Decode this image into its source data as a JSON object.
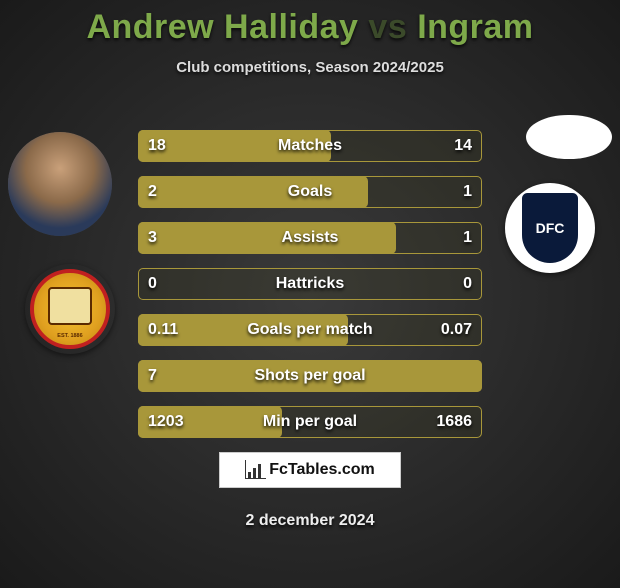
{
  "title": {
    "player1": "Andrew Halliday",
    "vs": "vs",
    "player2": "Ingram",
    "color_players": "#7ea94a",
    "color_vs": "#3b4a2a"
  },
  "subtitle": "Club competitions, Season 2024/2025",
  "club2_text": "DFC",
  "stats": {
    "bar_border_color": "#a8973a",
    "bar_fill_color": "#a8973a",
    "rows": [
      {
        "label": "Matches",
        "left": "18",
        "right": "14",
        "fill_pct": 56
      },
      {
        "label": "Goals",
        "left": "2",
        "right": "1",
        "fill_pct": 67
      },
      {
        "label": "Assists",
        "left": "3",
        "right": "1",
        "fill_pct": 75
      },
      {
        "label": "Hattricks",
        "left": "0",
        "right": "0",
        "fill_pct": 0
      },
      {
        "label": "Goals per match",
        "left": "0.11",
        "right": "0.07",
        "fill_pct": 61
      },
      {
        "label": "Shots per goal",
        "left": "7",
        "right": "",
        "fill_pct": 100
      },
      {
        "label": "Min per goal",
        "left": "1203",
        "right": "1686",
        "fill_pct": 42
      }
    ]
  },
  "logo_text": "FcTables.com",
  "date": "2 december 2024"
}
